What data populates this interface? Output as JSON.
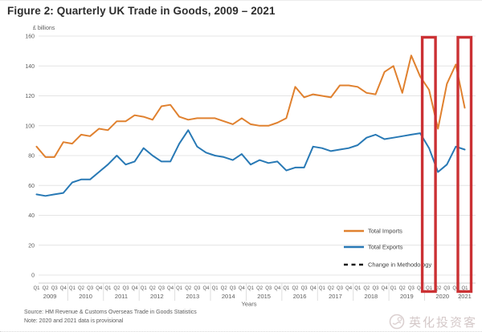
{
  "title": "Figure 2: Quarterly UK Trade in Goods, 2009 – 2021",
  "chart_data": {
    "type": "line",
    "title": "Figure 2: Quarterly UK Trade in Goods, 2009 – 2021",
    "y_axis": {
      "label": "£ billions",
      "min": 0,
      "max": 160,
      "tick_step": 20,
      "ticks": [
        160,
        140,
        120,
        100,
        80,
        60,
        40,
        20,
        0
      ],
      "grid": true
    },
    "x_axis": {
      "label": "Years",
      "years": [
        "2009",
        "2010",
        "2011",
        "2012",
        "2013",
        "2014",
        "2015",
        "2016",
        "2017",
        "2018",
        "2019",
        "2020",
        "2021"
      ],
      "quarter_labels": [
        "Q1",
        "Q2",
        "Q3",
        "Q4",
        "Q1",
        "Q2",
        "Q3",
        "Q4",
        "Q1",
        "Q2",
        "Q3",
        "Q4",
        "Q1",
        "Q2",
        "Q3",
        "Q4",
        "Q1",
        "Q2",
        "Q3",
        "Q4",
        "Q1",
        "Q2",
        "Q3",
        "Q4",
        "Q1",
        "Q2",
        "Q3",
        "Q4",
        "Q1",
        "Q2",
        "Q3",
        "Q4",
        "Q1",
        "Q2",
        "Q3",
        "Q4",
        "Q1",
        "Q2",
        "Q3",
        "Q4",
        "Q1",
        "Q2",
        "Q3",
        "Q4",
        "Q1",
        "Q2",
        "Q3",
        "Q4",
        "Q1"
      ]
    },
    "series": [
      {
        "name": "Total Imports",
        "color": "#e0812f",
        "values": [
          86,
          79,
          79,
          89,
          88,
          94,
          93,
          98,
          97,
          103,
          103,
          107,
          106,
          104,
          113,
          114,
          106,
          104,
          105,
          105,
          105,
          103,
          101,
          105,
          101,
          100,
          100,
          102,
          105,
          126,
          119,
          121,
          120,
          119,
          127,
          127,
          126,
          122,
          121,
          136,
          140,
          122,
          147,
          133,
          124,
          98,
          128,
          141,
          112
        ]
      },
      {
        "name": "Total Exports",
        "color": "#2879b5",
        "values": [
          54,
          53,
          54,
          55,
          62,
          64,
          64,
          69,
          74,
          80,
          74,
          76,
          85,
          80,
          76,
          76,
          88,
          97,
          86,
          82,
          80,
          79,
          77,
          81,
          74,
          77,
          75,
          76,
          70,
          72,
          72,
          86,
          85,
          83,
          84,
          85,
          87,
          92,
          94,
          91,
          92,
          93,
          94,
          95,
          85,
          69,
          74,
          86,
          84
        ]
      }
    ],
    "legend": [
      {
        "label": "Total Imports",
        "style": "solid",
        "color": "#e0812f"
      },
      {
        "label": "Total Exports",
        "style": "solid",
        "color": "#2879b5"
      },
      {
        "label": "Change in Methodology",
        "style": "dashed",
        "color": "#1a1a1a"
      }
    ],
    "legend_position": "inside-right",
    "highlights": [
      {
        "label": "Q1 2020",
        "quarter_index": 44
      },
      {
        "label": "Q1 2021",
        "quarter_index": 48
      }
    ],
    "highlight_color": "#cb3134"
  },
  "footer": {
    "source": "Source: HM Revenue & Customs Overseas Trade in Goods Statistics",
    "note": "Note: 2020 and 2021 data is provisional"
  },
  "watermark": {
    "text": "英化投资客"
  }
}
